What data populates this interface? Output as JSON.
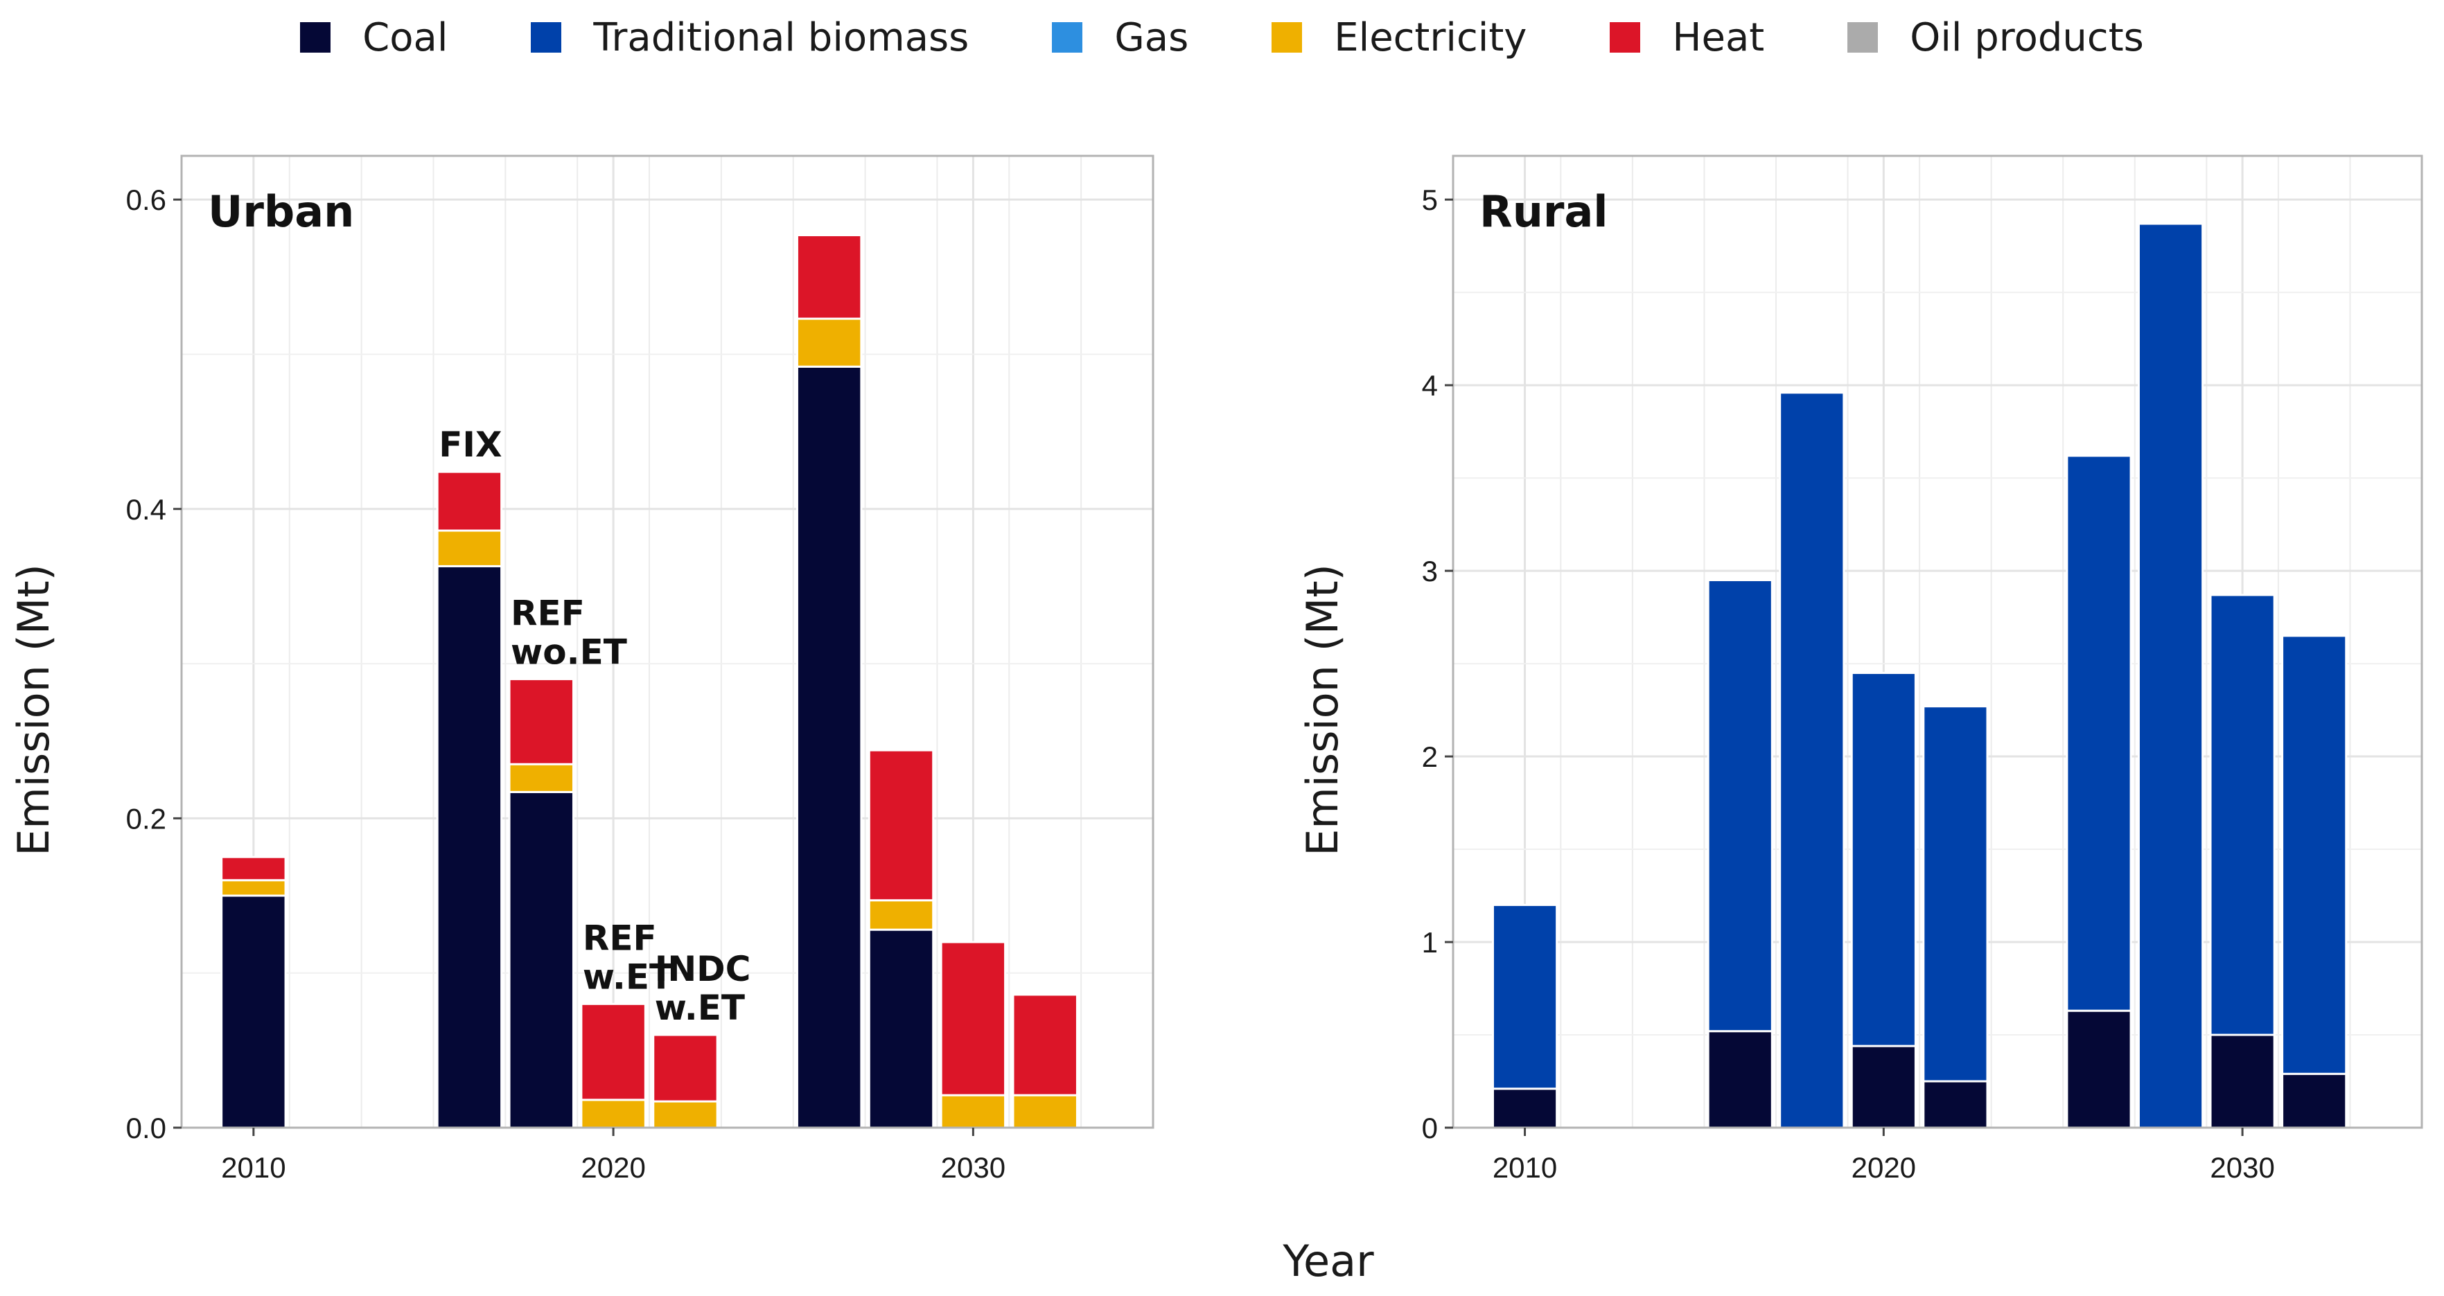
{
  "legend": [
    {
      "key": "coal",
      "label": "Coal",
      "color": "#050836"
    },
    {
      "key": "biomass",
      "label": "Traditional biomass",
      "color": "#0041AA"
    },
    {
      "key": "gas",
      "label": "Gas",
      "color": "#2D8FE0"
    },
    {
      "key": "electricity",
      "label": "Electricity",
      "color": "#EFB000"
    },
    {
      "key": "heat",
      "label": "Heat",
      "color": "#DC1528"
    },
    {
      "key": "oil",
      "label": "Oil products",
      "color": "#ABABAB"
    }
  ],
  "xlabel": "Year",
  "chart_data": [
    {
      "type": "bar",
      "stacked": true,
      "title": "Urban",
      "ylabel": "Emission (Mt)",
      "ylim": [
        0,
        0.6
      ],
      "yticks": [
        0.0,
        0.2,
        0.4,
        0.6
      ],
      "ytick_labels": [
        "0.0",
        "0.2",
        "0.4",
        "0.6"
      ],
      "xticks": [
        2010,
        2020,
        2030
      ],
      "xtick_labels": [
        "2010",
        "2020",
        "2030"
      ],
      "scenario_labels": [
        {
          "text": [
            "FIX"
          ],
          "bar": 1
        },
        {
          "text": [
            "REF",
            "wo.ET"
          ],
          "bar": 2
        },
        {
          "text": [
            "REF",
            "w.ET"
          ],
          "bar": 3
        },
        {
          "text": [
            "INDC",
            "w.ET"
          ],
          "bar": 4
        }
      ],
      "bars": [
        {
          "x": 2010,
          "coal": 0.15,
          "biomass": 0,
          "gas": 0,
          "electricity": 0.01,
          "heat": 0.015,
          "oil": 0
        },
        {
          "x": 2016,
          "coal": 0.363,
          "biomass": 0,
          "gas": 0,
          "electricity": 0.023,
          "heat": 0.038,
          "oil": 0
        },
        {
          "x": 2018,
          "coal": 0.217,
          "biomass": 0,
          "gas": 0,
          "electricity": 0.018,
          "heat": 0.055,
          "oil": 0
        },
        {
          "x": 2020,
          "coal": 0,
          "biomass": 0,
          "gas": 0,
          "electricity": 0.018,
          "heat": 0.062,
          "oil": 0
        },
        {
          "x": 2022,
          "coal": 0,
          "biomass": 0,
          "gas": 0,
          "electricity": 0.017,
          "heat": 0.043,
          "oil": 0
        },
        {
          "x": 2026,
          "coal": 0.492,
          "biomass": 0,
          "gas": 0,
          "electricity": 0.031,
          "heat": 0.054,
          "oil": 0
        },
        {
          "x": 2028,
          "coal": 0.128,
          "biomass": 0,
          "gas": 0,
          "electricity": 0.019,
          "heat": 0.097,
          "oil": 0
        },
        {
          "x": 2030,
          "coal": 0,
          "biomass": 0,
          "gas": 0,
          "electricity": 0.021,
          "heat": 0.099,
          "oil": 0
        },
        {
          "x": 2032,
          "coal": 0,
          "biomass": 0,
          "gas": 0,
          "electricity": 0.021,
          "heat": 0.065,
          "oil": 0
        }
      ]
    },
    {
      "type": "bar",
      "stacked": true,
      "title": "Rural",
      "ylabel": "Emission (Mt)",
      "ylim": [
        0,
        5
      ],
      "yticks": [
        0,
        1,
        2,
        3,
        4,
        5
      ],
      "ytick_labels": [
        "0",
        "1",
        "2",
        "3",
        "4",
        "5"
      ],
      "xticks": [
        2010,
        2020,
        2030
      ],
      "xtick_labels": [
        "2010",
        "2020",
        "2030"
      ],
      "bars": [
        {
          "x": 2010,
          "coal": 0.21,
          "biomass": 0.99,
          "gas": 0,
          "electricity": 0,
          "heat": 0,
          "oil": 0
        },
        {
          "x": 2016,
          "coal": 0.52,
          "biomass": 2.43,
          "gas": 0,
          "electricity": 0,
          "heat": 0,
          "oil": 0
        },
        {
          "x": 2018,
          "coal": 0,
          "biomass": 3.96,
          "gas": 0,
          "electricity": 0,
          "heat": 0,
          "oil": 0
        },
        {
          "x": 2020,
          "coal": 0.44,
          "biomass": 2.01,
          "gas": 0,
          "electricity": 0,
          "heat": 0,
          "oil": 0
        },
        {
          "x": 2022,
          "coal": 0.25,
          "biomass": 2.02,
          "gas": 0,
          "electricity": 0,
          "heat": 0,
          "oil": 0
        },
        {
          "x": 2026,
          "coal": 0.63,
          "biomass": 2.99,
          "gas": 0,
          "electricity": 0,
          "heat": 0,
          "oil": 0
        },
        {
          "x": 2028,
          "coal": 0,
          "biomass": 4.87,
          "gas": 0,
          "electricity": 0,
          "heat": 0,
          "oil": 0
        },
        {
          "x": 2030,
          "coal": 0.5,
          "biomass": 2.37,
          "gas": 0,
          "electricity": 0,
          "heat": 0,
          "oil": 0
        },
        {
          "x": 2032,
          "coal": 0.29,
          "biomass": 2.36,
          "gas": 0,
          "electricity": 0,
          "heat": 0,
          "oil": 0
        }
      ]
    }
  ]
}
